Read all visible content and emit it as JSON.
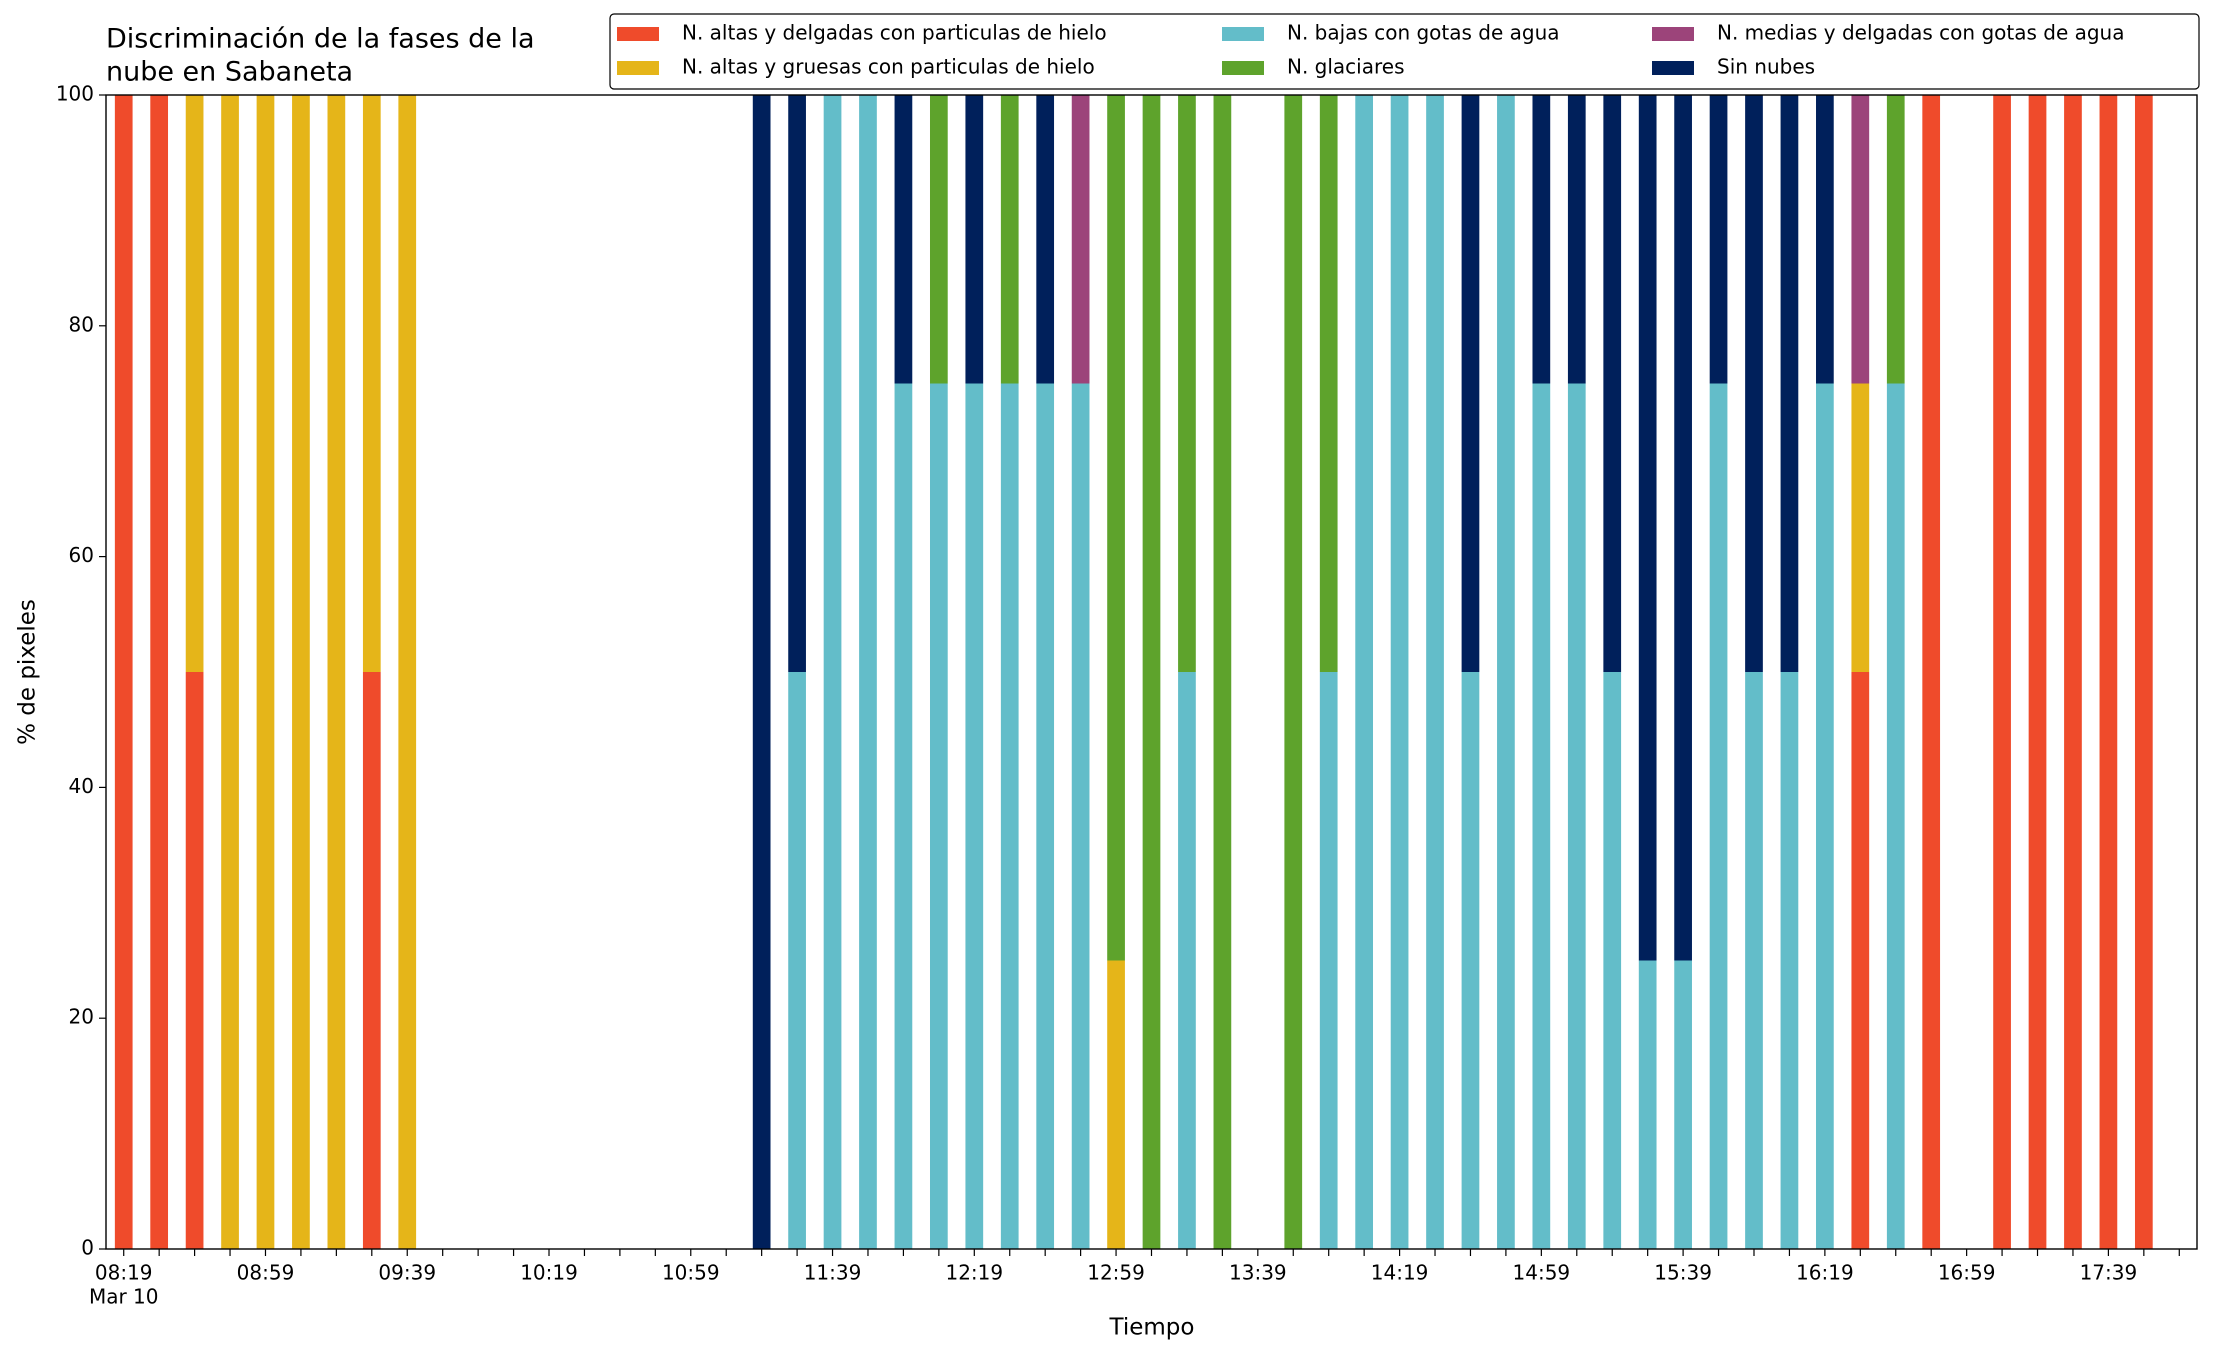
{
  "chart_data": {
    "type": "stacked_bar",
    "title": [
      "Discriminación de la fases de la",
      "nube en Sabaneta"
    ],
    "xlabel": "Tiempo",
    "ylabel": "% de pixeles",
    "x_date_label": "Mar 10",
    "categories": [
      "08:19",
      null,
      null,
      null,
      "08:59",
      null,
      null,
      null,
      "09:39",
      null,
      null,
      null,
      "10:19",
      null,
      null,
      null,
      "10:59",
      null,
      null,
      null,
      "11:39",
      null,
      null,
      null,
      "12:19",
      null,
      null,
      null,
      "12:59",
      null,
      null,
      null,
      "13:39",
      null,
      null,
      null,
      "14:19",
      null,
      null,
      null,
      "14:59",
      null,
      null,
      null,
      "15:39",
      null,
      null,
      null,
      "16:19",
      null,
      null,
      null,
      "16:59",
      null,
      null,
      null,
      "17:39",
      null,
      null
    ],
    "series": [
      {
        "name": "N. altas y delgadas con particulas de hielo",
        "color": "#ef4b2b",
        "values": [
          100,
          100,
          50,
          0,
          0,
          0,
          0,
          50,
          0,
          0,
          0,
          0,
          0,
          0,
          0,
          0,
          0,
          0,
          0,
          0,
          0,
          0,
          0,
          0,
          0,
          0,
          0,
          0,
          0,
          0,
          0,
          0,
          0,
          0,
          0,
          0,
          0,
          0,
          0,
          0,
          0,
          0,
          0,
          0,
          0,
          0,
          0,
          0,
          0,
          50,
          0,
          100,
          0,
          100,
          100,
          100,
          100,
          100,
          0
        ]
      },
      {
        "name": "N. altas y gruesas con particulas de hielo",
        "color": "#e5b519",
        "values": [
          0,
          0,
          50,
          100,
          100,
          100,
          100,
          50,
          100,
          0,
          0,
          0,
          0,
          0,
          0,
          0,
          0,
          0,
          0,
          0,
          0,
          0,
          0,
          0,
          0,
          0,
          0,
          0,
          25,
          0,
          0,
          0,
          0,
          0,
          0,
          0,
          0,
          0,
          0,
          0,
          0,
          0,
          0,
          0,
          0,
          0,
          0,
          0,
          0,
          25,
          0,
          0,
          0,
          0,
          0,
          0,
          0,
          0,
          0
        ]
      },
      {
        "name": "N. bajas con gotas de agua",
        "color": "#63bdc9",
        "values": [
          0,
          0,
          0,
          0,
          0,
          0,
          0,
          0,
          0,
          0,
          0,
          0,
          0,
          0,
          0,
          0,
          0,
          0,
          0,
          50,
          100,
          100,
          75,
          75,
          75,
          75,
          75,
          75,
          0,
          0,
          50,
          0,
          0,
          0,
          50,
          100,
          100,
          100,
          50,
          100,
          75,
          75,
          50,
          25,
          25,
          75,
          50,
          50,
          75,
          0,
          75,
          0,
          0,
          0,
          0,
          0,
          0,
          0,
          0
        ]
      },
      {
        "name": "N. glaciares",
        "color": "#5ea32c",
        "values": [
          0,
          0,
          0,
          0,
          0,
          0,
          0,
          0,
          0,
          0,
          0,
          0,
          0,
          0,
          0,
          0,
          0,
          0,
          0,
          0,
          0,
          0,
          0,
          25,
          0,
          25,
          0,
          0,
          75,
          100,
          50,
          100,
          0,
          100,
          50,
          0,
          0,
          0,
          0,
          0,
          0,
          0,
          0,
          0,
          0,
          0,
          0,
          0,
          0,
          0,
          25,
          0,
          0,
          0,
          0,
          0,
          0,
          0,
          0
        ]
      },
      {
        "name": "N. medias y delgadas con gotas de agua",
        "color": "#9c447a",
        "values": [
          0,
          0,
          0,
          0,
          0,
          0,
          0,
          0,
          0,
          0,
          0,
          0,
          0,
          0,
          0,
          0,
          0,
          0,
          0,
          0,
          0,
          0,
          0,
          0,
          0,
          0,
          0,
          25,
          0,
          0,
          0,
          0,
          0,
          0,
          0,
          0,
          0,
          0,
          0,
          0,
          0,
          0,
          0,
          0,
          0,
          0,
          0,
          0,
          0,
          25,
          0,
          0,
          0,
          0,
          0,
          0,
          0,
          0,
          0
        ]
      },
      {
        "name": "Sin nubes",
        "color": "#00205b",
        "values": [
          0,
          0,
          0,
          0,
          0,
          0,
          0,
          0,
          0,
          0,
          0,
          0,
          0,
          0,
          0,
          0,
          0,
          0,
          100,
          50,
          0,
          0,
          25,
          0,
          25,
          0,
          25,
          0,
          0,
          0,
          0,
          0,
          0,
          0,
          0,
          0,
          0,
          0,
          50,
          0,
          25,
          25,
          50,
          75,
          75,
          25,
          50,
          50,
          25,
          0,
          0,
          0,
          0,
          0,
          0,
          0,
          0,
          0,
          0
        ]
      }
    ],
    "ylim": [
      0,
      100
    ],
    "yticks": [
      0,
      20,
      40,
      60,
      80,
      100
    ],
    "legend": "upper right",
    "grid": false
  }
}
